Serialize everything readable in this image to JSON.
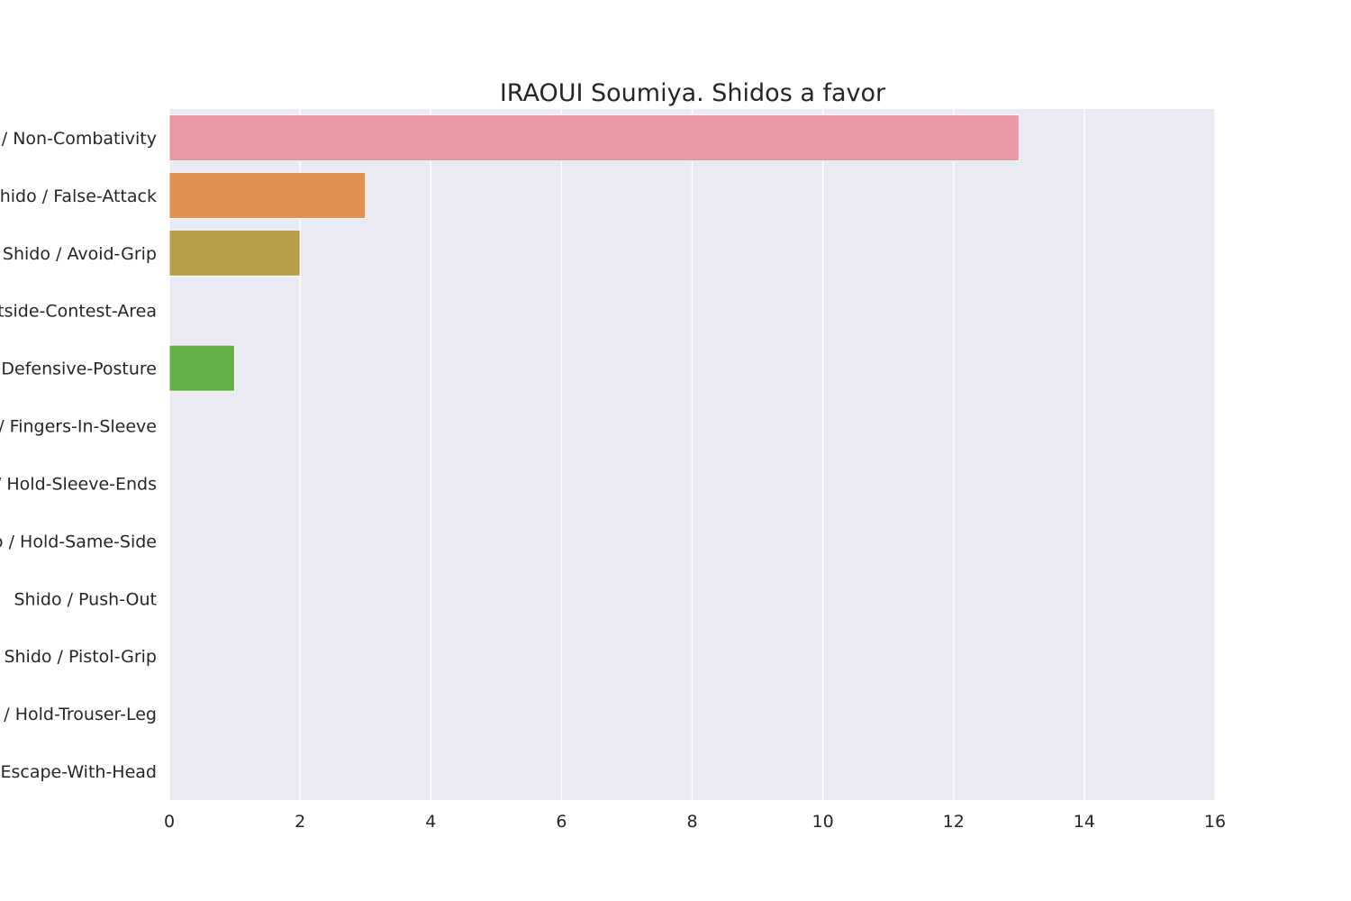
{
  "chart_data": {
    "type": "bar",
    "orientation": "horizontal",
    "title": "IRAOUI Soumiya. Shidos a favor",
    "xlabel": "",
    "ylabel": "",
    "categories": [
      "Shido / Non-Combativity",
      "Shido / False-Attack",
      "Shido / Avoid-Grip",
      "Shido / Outside-Contest-Area",
      "Shido / Defensive-Posture",
      "Shido / Fingers-In-Sleeve",
      "Shido / Hold-Sleeve-Ends",
      "Shido / Hold-Same-Side",
      "Shido / Push-Out",
      "Shido / Pistol-Grip",
      "Shido / Hold-Trouser-Leg",
      "Shido / Escape-With-Head"
    ],
    "values": [
      13,
      3,
      2,
      0,
      1,
      0,
      0,
      0,
      0,
      0,
      0,
      0
    ],
    "colors": [
      "#ea96a3",
      "#e19153",
      "#b89d4a",
      "#98a24a",
      "#62b046",
      "#55ad8a",
      "#57aba7",
      "#5aa9c2",
      "#6aaee0",
      "#a4a7ec",
      "#d79ae9",
      "#e996c5"
    ],
    "xlim": [
      0,
      16
    ],
    "xticks": [
      0,
      2,
      4,
      6,
      8,
      10,
      12,
      14,
      16
    ],
    "grid": true,
    "plot_background": "#eaeaf2",
    "grid_color": "#ffffff"
  }
}
